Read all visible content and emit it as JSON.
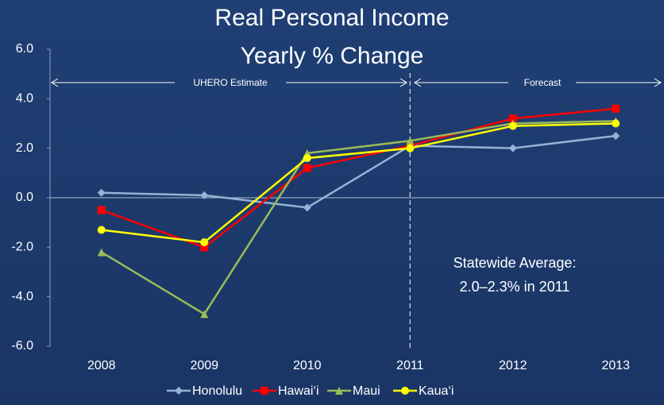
{
  "chart_data": {
    "type": "line",
    "title": [
      "Real Personal Income",
      "Yearly % Change"
    ],
    "categories": [
      "2008",
      "2009",
      "2010",
      "2011",
      "2012",
      "2013"
    ],
    "series": [
      {
        "name": "Honolulu",
        "color": "#95b3d7",
        "marker": "diamond",
        "values": [
          0.2,
          0.1,
          -0.4,
          2.1,
          2.0,
          2.5
        ]
      },
      {
        "name": "Hawai‘i",
        "color": "#ff0000",
        "marker": "square",
        "values": [
          -0.5,
          -2.0,
          1.2,
          2.1,
          3.2,
          3.6
        ]
      },
      {
        "name": "Maui",
        "color": "#9bbb59",
        "marker": "triangle",
        "values": [
          -2.2,
          -4.7,
          1.8,
          2.3,
          3.0,
          3.1
        ]
      },
      {
        "name": "Kaua‘i",
        "color": "#ffff00",
        "marker": "circle",
        "values": [
          -1.3,
          -1.8,
          1.6,
          2.0,
          2.9,
          3.0
        ]
      }
    ],
    "ylim": [
      -6,
      6
    ],
    "yticks": [
      {
        "value": 6,
        "label": "6.0"
      },
      {
        "value": 4,
        "label": "4.0"
      },
      {
        "value": 2,
        "label": "2.0"
      },
      {
        "value": 0,
        "label": "0.0"
      },
      {
        "value": -2,
        "label": "-2.0"
      },
      {
        "value": -4,
        "label": "-4.0"
      },
      {
        "value": -6,
        "label": "-6.0"
      }
    ],
    "annotations": [
      "UHERO Estimate",
      "Forecast",
      "Statewide Average:",
      "2.0–2.3% in 2011"
    ],
    "legend": "bottom"
  }
}
